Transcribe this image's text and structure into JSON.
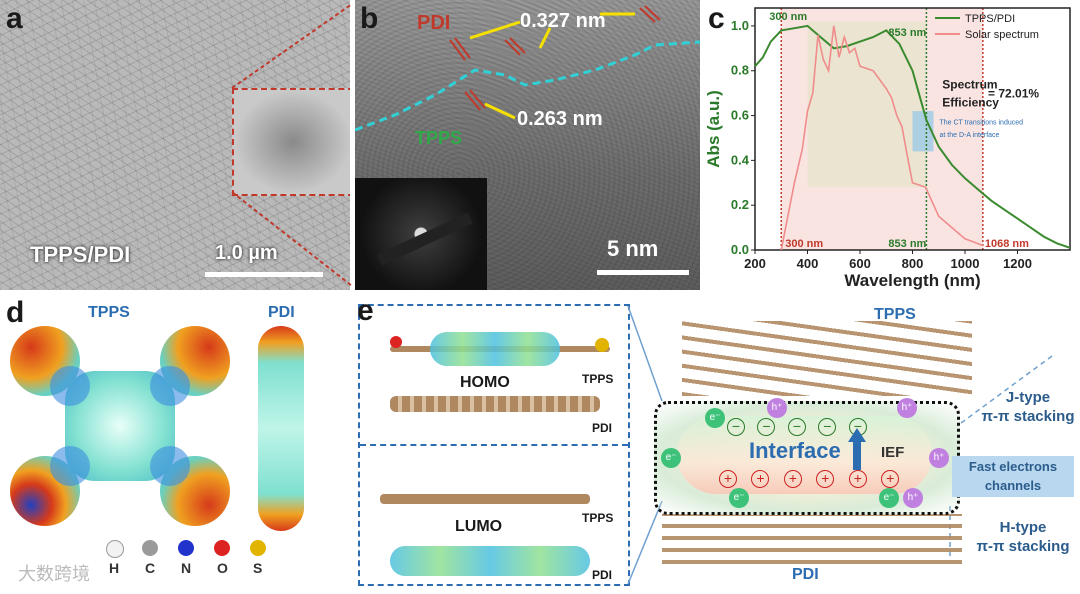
{
  "panel_a": {
    "label": "a",
    "sample_label": "TPPS/PDI",
    "scale_label": "1.0 µm"
  },
  "panel_b": {
    "label": "b",
    "pdi_label": "PDI",
    "d1_label": "0.327 nm",
    "d2_label": "0.263 nm",
    "tpps_label": "TPPS",
    "scale_label": "5 nm"
  },
  "panel_c": {
    "label": "c",
    "legend": [
      "TPPS/PDI",
      "Solar spectrum"
    ],
    "colors": {
      "tpps_pdi": "#3a8a2e",
      "solar": "#f08c8c",
      "shade": "#f7d9d6",
      "box": "#e9e3cf",
      "ct": "#9cc9e6"
    },
    "annot_300_top": "300 nm",
    "annot_853_top": "853 nm",
    "annot_300_bottom": "300 nm",
    "annot_853_bottom": "853 nm",
    "annot_1068": "1068 nm",
    "efficiency_line1": "Spectrum",
    "efficiency_line2": "Efficiency",
    "efficiency_value": "= 72.01%",
    "ct_line1": "The CT transitions induced",
    "ct_line2": "at the D-A interface"
  },
  "chart_data": {
    "type": "line",
    "title": "",
    "xlabel": "Wavelength (nm)",
    "ylabel": "Abs (a.u.)",
    "xlim": [
      200,
      1400
    ],
    "ylim": [
      0,
      1.08
    ],
    "xticks": [
      "200",
      "400",
      "600",
      "800",
      "1000",
      "1200"
    ],
    "yticks": [
      "0.0",
      "0.2",
      "0.4",
      "0.6",
      "0.8",
      "1.0"
    ],
    "legend_position": "top-right",
    "series": [
      {
        "name": "TPPS/PDI",
        "x": [
          200,
          230,
          260,
          300,
          350,
          400,
          450,
          500,
          550,
          600,
          650,
          700,
          750,
          800,
          853,
          900,
          950,
          1000,
          1050,
          1100,
          1150,
          1200,
          1250,
          1300,
          1350,
          1400
        ],
        "y": [
          0.82,
          0.86,
          0.93,
          0.98,
          0.99,
          1.0,
          0.95,
          0.9,
          0.91,
          0.93,
          0.95,
          0.98,
          0.92,
          0.8,
          0.58,
          0.46,
          0.38,
          0.32,
          0.27,
          0.22,
          0.18,
          0.14,
          0.1,
          0.06,
          0.03,
          0.01
        ]
      },
      {
        "name": "Solar spectrum",
        "x": [
          300,
          320,
          350,
          380,
          400,
          420,
          440,
          460,
          480,
          500,
          520,
          540,
          560,
          580,
          600,
          650,
          700,
          720,
          740,
          760,
          780,
          800,
          850,
          900,
          950,
          1000,
          1068
        ],
        "y": [
          0.0,
          0.12,
          0.3,
          0.45,
          0.62,
          0.7,
          0.96,
          0.85,
          0.8,
          1.0,
          0.86,
          0.95,
          0.88,
          0.9,
          0.82,
          0.8,
          0.72,
          0.68,
          0.6,
          0.55,
          0.42,
          0.3,
          0.28,
          0.15,
          0.1,
          0.05,
          0.02
        ]
      }
    ]
  },
  "panel_d": {
    "label": "d",
    "tpps_label": "TPPS",
    "pdi_label": "PDI",
    "atoms": [
      {
        "symbol": "H",
        "color": "#f2f2f2"
      },
      {
        "symbol": "C",
        "color": "#9a9a9a"
      },
      {
        "symbol": "N",
        "color": "#2233cc"
      },
      {
        "symbol": "O",
        "color": "#dd2222"
      },
      {
        "symbol": "S",
        "color": "#e0b400"
      }
    ]
  },
  "panel_e": {
    "label": "e",
    "homo_label": "HOMO",
    "lumo_label": "LUMO",
    "tpps_small": "TPPS",
    "pdi_small": "PDI",
    "tpps_large": "TPPS",
    "pdi_large": "PDI",
    "interface_label": "Interface",
    "ief_label": "IEF",
    "electron": "e⁻",
    "hole": "h⁺",
    "minus": "−",
    "plus": "+",
    "jtype_line1": "J-type",
    "jtype_line2": "π-π stacking",
    "fast_line1": "Fast electrons",
    "fast_line2": "channels",
    "htype_line1": "H-type",
    "htype_line2": "π-π stacking"
  },
  "watermark": "大数跨境"
}
